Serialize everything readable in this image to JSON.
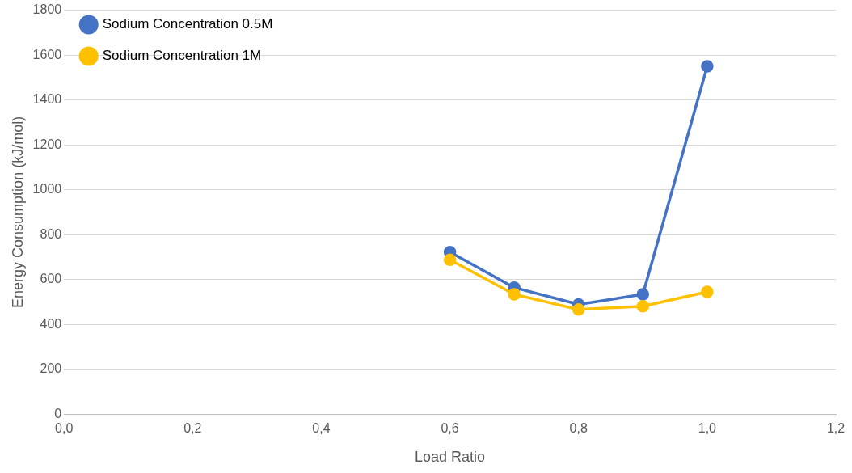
{
  "chart_data": {
    "type": "line",
    "xlabel": "Load Ratio",
    "ylabel": "Energy Consumption (kJ/mol)",
    "x": [
      0.6,
      0.7,
      0.8,
      0.9,
      1.0
    ],
    "series": [
      {
        "name": "Sodium Concentration 0.5M",
        "color": "#4472c4",
        "values": [
          722,
          564,
          489,
          534,
          1550
        ]
      },
      {
        "name": "Sodium Concentration 1M",
        "color": "#ffc000",
        "values": [
          688,
          534,
          466,
          481,
          545
        ]
      }
    ],
    "xlim": [
      0,
      1.2
    ],
    "xticks": [
      {
        "value": 0,
        "label": "0,0"
      },
      {
        "value": 0.2,
        "label": "0,2"
      },
      {
        "value": 0.4,
        "label": "0,4"
      },
      {
        "value": 0.6,
        "label": "0,6"
      },
      {
        "value": 0.8,
        "label": "0,8"
      },
      {
        "value": 1.0,
        "label": "1,0"
      },
      {
        "value": 1.2,
        "label": "1,2"
      }
    ],
    "ylim": [
      0,
      1800
    ],
    "yticks": [
      0,
      200,
      400,
      600,
      800,
      1000,
      1200,
      1400,
      1600,
      1800
    ],
    "grid": "y",
    "legend": "top left",
    "marker": "circle",
    "line_style": "solid"
  }
}
